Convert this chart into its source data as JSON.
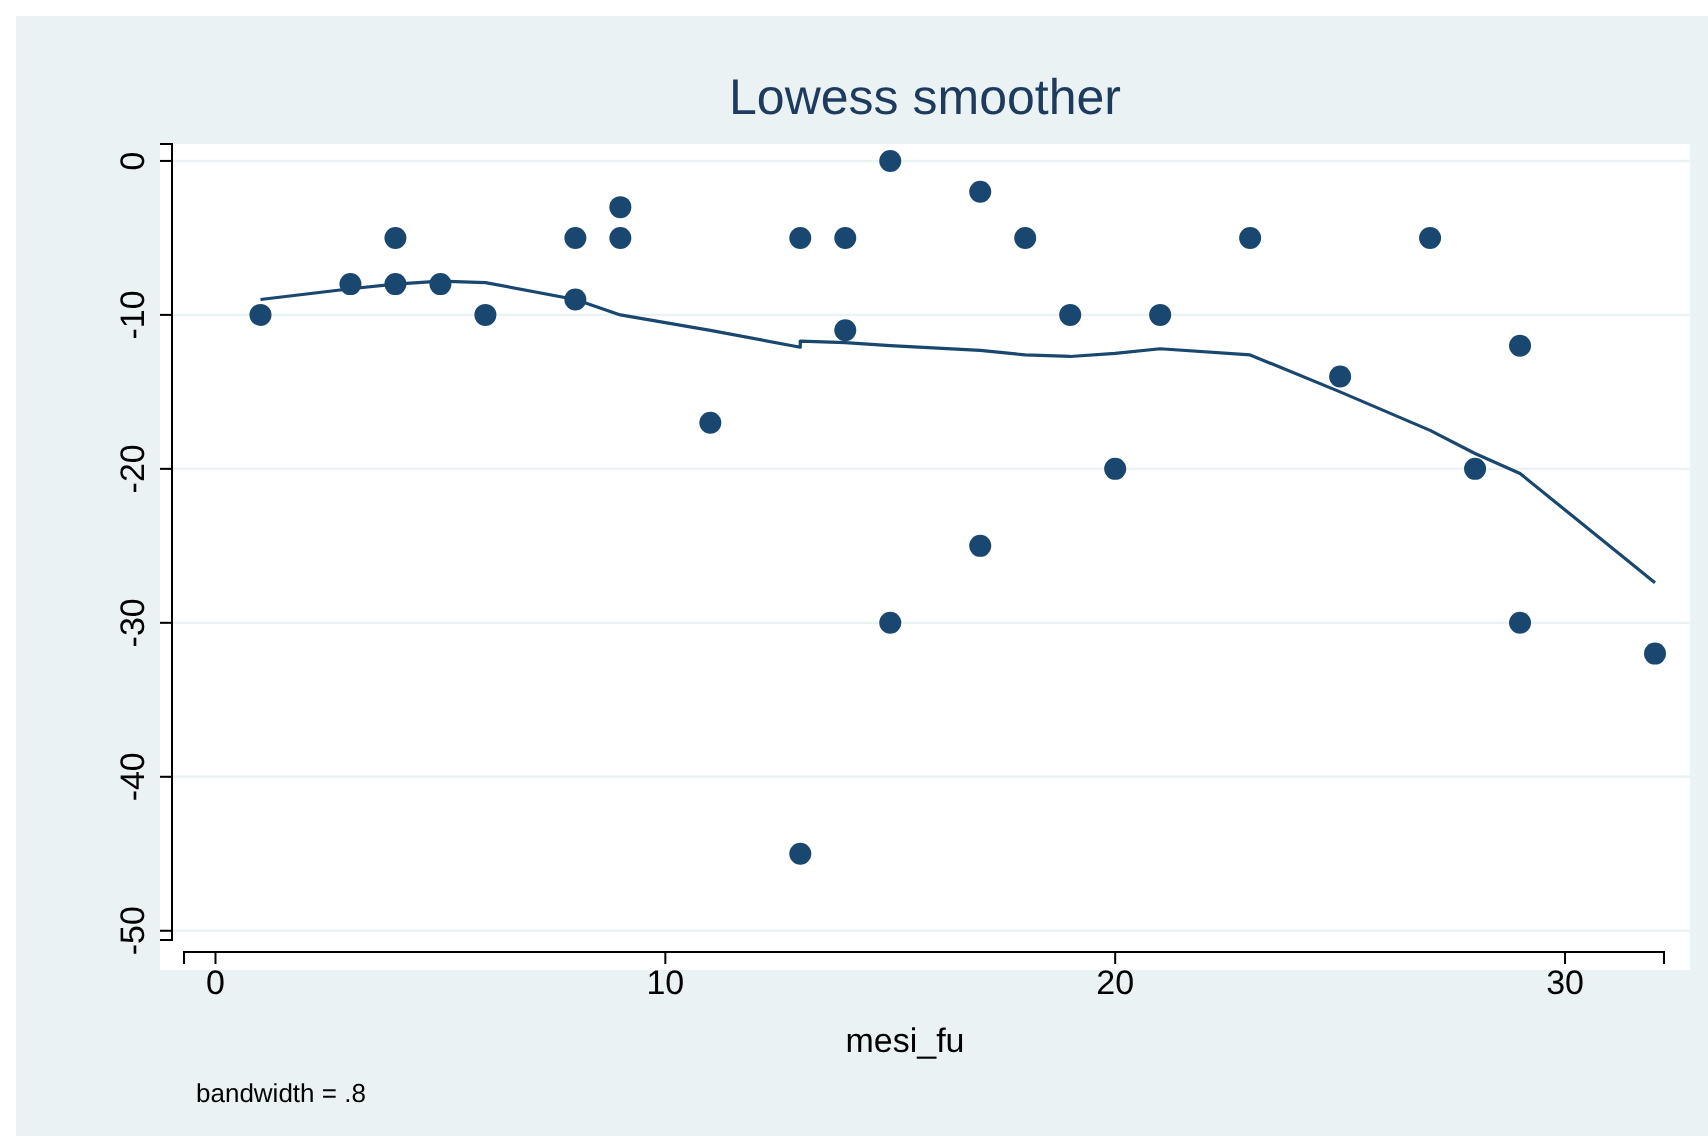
{
  "chart_data": {
    "type": "scatter",
    "title": "Lowess smoother",
    "xlabel": "mesi_fu",
    "annotations": [
      "bandwidth = .8"
    ],
    "xlim": [
      -0.7,
      32.2
    ],
    "ylim": [
      -50.6,
      1.1
    ],
    "xticks": [
      0,
      10,
      20,
      30
    ],
    "yticks": [
      0,
      -10,
      -20,
      -30,
      -40,
      -50
    ],
    "grid": "y",
    "series": [
      {
        "type": "scatter",
        "color": "#1a476f",
        "marker": "circle",
        "x": [
          1,
          3,
          4,
          4,
          5,
          6,
          8,
          8,
          9,
          9,
          11,
          13,
          13,
          14,
          14,
          15,
          15,
          17,
          17,
          18,
          19,
          20,
          21,
          23,
          25,
          27,
          28,
          29,
          29,
          32
        ],
        "values": [
          -10,
          -8,
          -5,
          -8,
          -8,
          -10,
          -5,
          -9,
          -3,
          -5,
          -17,
          -5,
          -45,
          -5,
          -11,
          0,
          -30,
          -2,
          -25,
          -5,
          -10,
          -20,
          -10,
          -5,
          -14,
          -5,
          -20,
          -12,
          -30,
          -32
        ]
      },
      {
        "type": "line",
        "color": "#1a476f",
        "line_style": "solid",
        "x": [
          1,
          3,
          4,
          5,
          6,
          8,
          9,
          11,
          13,
          13,
          14,
          15,
          17,
          18,
          19,
          20,
          21,
          23,
          25,
          27,
          28,
          29,
          32
        ],
        "values": [
          -9,
          -8.3,
          -8,
          -7.8,
          -7.9,
          -9,
          -10,
          -11,
          -12.1,
          -11.7,
          -11.8,
          -12,
          -12.3,
          -12.6,
          -12.7,
          -12.5,
          -12.2,
          -12.6,
          -15,
          -17.5,
          -19,
          -20.3,
          -27.4
        ]
      }
    ]
  }
}
